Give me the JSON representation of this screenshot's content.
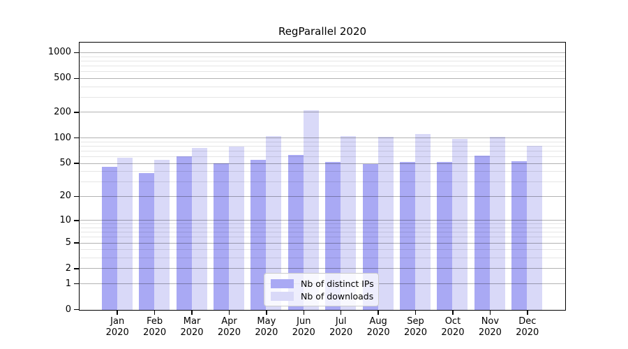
{
  "figure": {
    "title": "RegParallel 2020"
  },
  "chart_data": {
    "type": "bar",
    "title": "RegParallel 2020",
    "categories": [
      "Jan 2020",
      "Feb 2020",
      "Mar 2020",
      "Apr 2020",
      "May 2020",
      "Jun 2020",
      "Jul 2020",
      "Aug 2020",
      "Sep 2020",
      "Oct 2020",
      "Nov 2020",
      "Dec 2020"
    ],
    "series": [
      {
        "name": "Nb of distinct IPs",
        "color": "#a9a9f4",
        "values": [
          46,
          39,
          61,
          51,
          56,
          64,
          53,
          50,
          53,
          53,
          62,
          54
        ]
      },
      {
        "name": "Nb of downloads",
        "color": "#d9d9f8",
        "values": [
          59,
          56,
          77,
          80,
          106,
          214,
          106,
          104,
          112,
          98,
          104,
          82
        ]
      }
    ],
    "xlabel": "",
    "ylabel": "",
    "yscale": "log10(1+x)",
    "ylim": [
      0,
      1300
    ],
    "yticks": [
      0,
      1,
      2,
      5,
      10,
      20,
      50,
      100,
      200,
      500,
      1000
    ],
    "minor_yticks": [
      3,
      4,
      6,
      7,
      8,
      9,
      30,
      40,
      60,
      70,
      80,
      90,
      300,
      400,
      600,
      700,
      800,
      900
    ],
    "grid": true,
    "legend_position": "bottom-center"
  },
  "legend": {
    "items": [
      {
        "label": "Nb of distinct IPs"
      },
      {
        "label": "Nb of downloads"
      }
    ]
  },
  "colors": {
    "ips_bar": "#a9a9f4",
    "downloads_bar": "#d9d9f8",
    "axis": "#000000",
    "major_grid": "rgba(0,0,0,0.30)",
    "minor_grid": "rgba(0,0,0,0.10)",
    "legend_border": "#cccccc",
    "legend_bg": "rgba(255,255,255,0.8)"
  }
}
